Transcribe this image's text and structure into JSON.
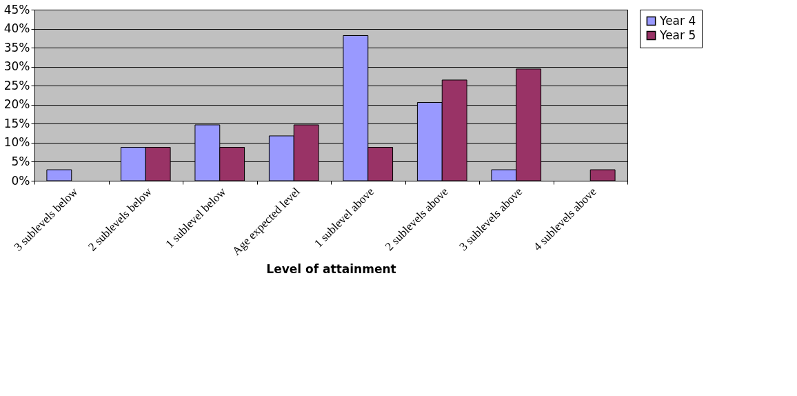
{
  "chart_data": {
    "type": "bar",
    "xlabel": "Level of attainment",
    "categories": [
      "3 sublevels below",
      "2 sublevels below",
      "1 sublevel below",
      "Age expected level",
      "1 sublevel above",
      "2 sublevels above",
      "3 sublevels above",
      "4 sublevels above"
    ],
    "series": [
      {
        "name": "Year 4",
        "color": "#9999ff",
        "values": [
          2.9,
          8.8,
          14.7,
          11.8,
          38.2,
          20.6,
          2.9,
          null
        ]
      },
      {
        "name": "Year 5",
        "color": "#993366",
        "values": [
          null,
          8.8,
          8.8,
          14.7,
          8.8,
          26.5,
          29.4,
          2.9
        ]
      }
    ],
    "ylim": [
      0,
      45
    ],
    "yticks": [
      {
        "value": 0,
        "label": "0%"
      },
      {
        "value": 5,
        "label": "5%"
      },
      {
        "value": 10,
        "label": "10%"
      },
      {
        "value": 15,
        "label": "15%"
      },
      {
        "value": 20,
        "label": "20%"
      },
      {
        "value": 25,
        "label": "25%"
      },
      {
        "value": 30,
        "label": "30%"
      },
      {
        "value": 35,
        "label": "35%"
      },
      {
        "value": 40,
        "label": "40%"
      },
      {
        "value": 45,
        "label": "45%"
      }
    ],
    "grid": "y",
    "legend": "right"
  }
}
